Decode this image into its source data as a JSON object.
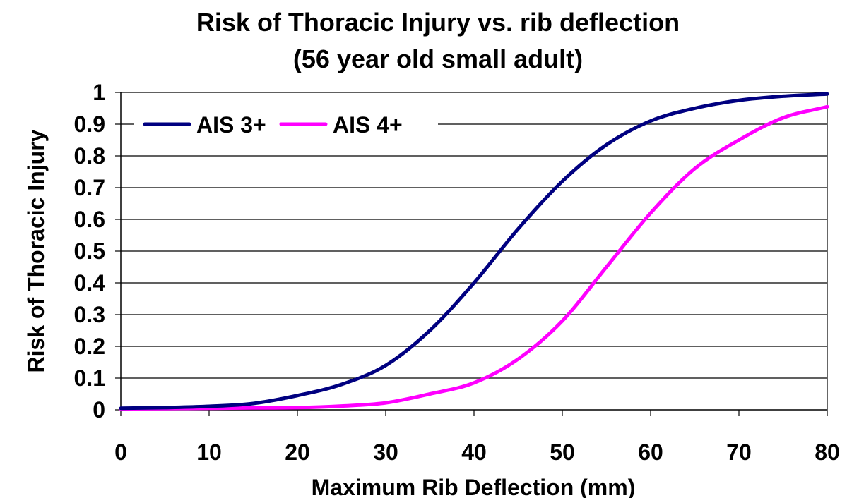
{
  "chart_data": {
    "type": "line",
    "title": "Risk of Thoracic Injury vs. rib deflection",
    "subtitle": "(56 year old small adult)",
    "xlabel": "Maximum Rib Deflection (mm)",
    "ylabel": "Risk of Thoracic Injury",
    "xlim": [
      0,
      80
    ],
    "ylim": [
      0,
      1
    ],
    "xticks": [
      "0",
      "10",
      "20",
      "30",
      "40",
      "50",
      "60",
      "70",
      "80"
    ],
    "yticks": [
      "0",
      "0.1",
      "0.2",
      "0.3",
      "0.4",
      "0.5",
      "0.6",
      "0.7",
      "0.8",
      "0.9",
      "1"
    ],
    "grid": "horizontal",
    "legend": "top-left",
    "x": [
      0,
      5,
      10,
      15,
      20,
      25,
      30,
      35,
      40,
      45,
      50,
      55,
      60,
      65,
      70,
      75,
      80
    ],
    "series": [
      {
        "name": "AIS 3+",
        "color": "#000080",
        "values": [
          0.005,
          0.007,
          0.011,
          0.02,
          0.045,
          0.08,
          0.14,
          0.25,
          0.4,
          0.57,
          0.72,
          0.835,
          0.91,
          0.95,
          0.975,
          0.988,
          0.995
        ]
      },
      {
        "name": "AIS 4+",
        "color": "#ff00ff",
        "values": [
          0.003,
          0.004,
          0.005,
          0.006,
          0.007,
          0.012,
          0.022,
          0.05,
          0.085,
          0.16,
          0.28,
          0.45,
          0.62,
          0.76,
          0.85,
          0.92,
          0.955
        ]
      }
    ]
  }
}
